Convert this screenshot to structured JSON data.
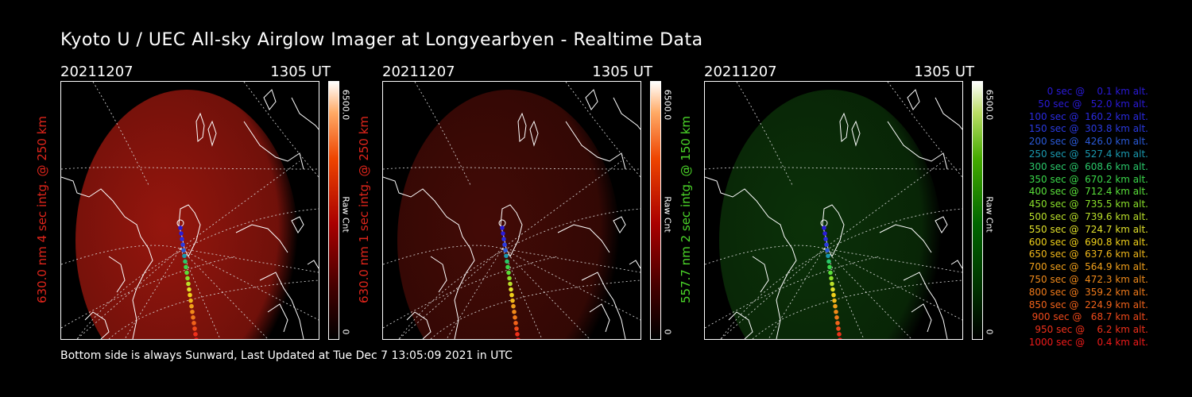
{
  "title": "Kyoto U / UEC All-sky Airglow Imager at Longyearbyen - Realtime Data",
  "footer": "Bottom side is always Sunward, Last Updated at Tue Dec  7 13:05:09 2021 in UTC",
  "panels": [
    {
      "date": "20211207",
      "time": "1305 UT",
      "label": "630.0 nm 4 sec intg. @ 250 km",
      "label_color": "#e0251b",
      "cbar_max": "6500.0",
      "cbar_unit": "Raw Cnt",
      "cbar_min": "0",
      "glow_color": "#b01a10",
      "glow_intensity": 0.85
    },
    {
      "date": "20211207",
      "time": "1305 UT",
      "label": "630.0 nm 1 sec intg. @ 250 km",
      "label_color": "#e0251b",
      "cbar_max": "6500.0",
      "cbar_unit": "Raw Cnt",
      "cbar_min": "0",
      "glow_color": "#5a0e08",
      "glow_intensity": 0.75
    },
    {
      "date": "20211207",
      "time": "1305 UT",
      "label": "557.7 nm 2 sec intg. @ 150 km",
      "label_color": "#4bd629",
      "cbar_max": "6500.0",
      "cbar_unit": "Raw Cnt",
      "cbar_min": "0",
      "glow_color": "#0d3a0a",
      "glow_intensity": 0.85
    }
  ],
  "legend": [
    {
      "text": "   0 sec @    0.1 km alt.",
      "color": "#2a1ad8"
    },
    {
      "text": "  50 sec @   52.0 km alt.",
      "color": "#2a1ad8"
    },
    {
      "text": " 100 sec @  160.2 km alt.",
      "color": "#2a2ae0"
    },
    {
      "text": " 150 sec @  303.8 km alt.",
      "color": "#2a3ae0"
    },
    {
      "text": " 200 sec @  426.0 km alt.",
      "color": "#2a5ad8"
    },
    {
      "text": " 250 sec @  527.4 km alt.",
      "color": "#1a9ab0"
    },
    {
      "text": " 300 sec @  608.6 km alt.",
      "color": "#2ac86a"
    },
    {
      "text": " 350 sec @  670.2 km alt.",
      "color": "#3ad84a"
    },
    {
      "text": " 400 sec @  712.4 km alt.",
      "color": "#5ae03a"
    },
    {
      "text": " 450 sec @  735.5 km alt.",
      "color": "#8ae02a"
    },
    {
      "text": " 500 sec @  739.6 km alt.",
      "color": "#bae02a"
    },
    {
      "text": " 550 sec @  724.7 km alt.",
      "color": "#e0e02a"
    },
    {
      "text": " 600 sec @  690.8 km alt.",
      "color": "#f0d01a"
    },
    {
      "text": " 650 sec @  637.6 km alt.",
      "color": "#f0b81a"
    },
    {
      "text": " 700 sec @  564.9 km alt.",
      "color": "#f0a01a"
    },
    {
      "text": " 750 sec @  472.3 km alt.",
      "color": "#f08a1a"
    },
    {
      "text": " 800 sec @  359.2 km alt.",
      "color": "#f07a1a"
    },
    {
      "text": " 850 sec @  224.9 km alt.",
      "color": "#f0621a"
    },
    {
      "text": " 900 sec @   68.7 km alt.",
      "color": "#f04a1a"
    },
    {
      "text": " 950 sec @    6.2 km alt.",
      "color": "#f0301a"
    },
    {
      "text": "1000 sec @    0.4 km alt.",
      "color": "#f01a1a"
    }
  ]
}
